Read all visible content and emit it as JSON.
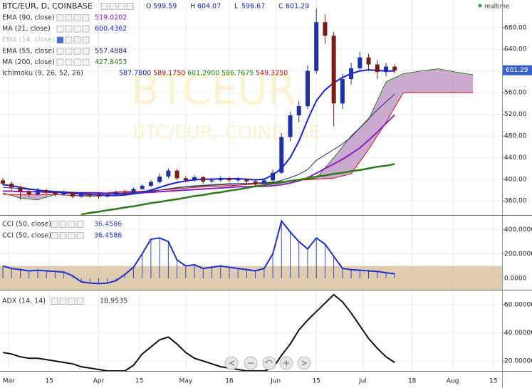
{
  "chart_data": [
    {
      "type": "candlestick",
      "title": "BTC/EUR, D, COINBASE",
      "realtime_label": "realtime",
      "watermark": {
        "symbol": "BTCEUR",
        "subtitle": "BTC/EUR, COINBASE"
      },
      "ohlc_header": [
        {
          "label": "O",
          "value": 599.59
        },
        {
          "label": "H",
          "value": 604.07
        },
        {
          "label": "L",
          "value": 596.67
        },
        {
          "label": "C",
          "value": 601.29
        }
      ],
      "xlim": [
        -3,
        170
      ],
      "ylim": [
        334,
        731
      ],
      "yticks": [
        {
          "value": 680,
          "label": "680.00"
        },
        {
          "value": 640,
          "label": "640.00"
        },
        {
          "value": 600,
          "label": "600.00"
        },
        {
          "value": 560,
          "label": "560.00"
        },
        {
          "value": 520,
          "label": "520.00"
        },
        {
          "value": 480,
          "label": "480.00"
        },
        {
          "value": 440,
          "label": "440.00"
        },
        {
          "value": 400,
          "label": "400.00"
        },
        {
          "value": 360,
          "label": "360.00"
        }
      ],
      "up_color": "#1f2fa8",
      "down_color": "#7a1c14",
      "x": [
        -2,
        1,
        4,
        7,
        10,
        13,
        16,
        19,
        22,
        25,
        28,
        31,
        34,
        37,
        40,
        43,
        46,
        49,
        52,
        55,
        58,
        61,
        64,
        67,
        70,
        73,
        76,
        79,
        82,
        85,
        88,
        91,
        94,
        97,
        100,
        103,
        106,
        109,
        112,
        115,
        118,
        121,
        124,
        127,
        130,
        133
      ],
      "open": [
        398,
        392,
        385,
        378,
        372,
        380,
        376,
        372,
        375,
        368,
        372,
        370,
        368,
        372,
        376,
        375,
        382,
        388,
        395,
        405,
        416,
        402,
        398,
        404,
        396,
        398,
        402,
        398,
        400,
        396,
        392,
        398,
        412,
        478,
        518,
        535,
        600,
        690,
        665,
        540,
        585,
        605,
        625,
        612,
        598,
        608
      ],
      "high": [
        402,
        396,
        388,
        382,
        384,
        383,
        378,
        379,
        377,
        375,
        374,
        372,
        375,
        379,
        380,
        385,
        391,
        398,
        410,
        420,
        419,
        406,
        408,
        406,
        402,
        406,
        405,
        404,
        402,
        398,
        402,
        418,
        485,
        525,
        545,
        610,
        715,
        705,
        672,
        595,
        615,
        635,
        632,
        620,
        615,
        612
      ],
      "low": [
        388,
        380,
        362,
        368,
        370,
        372,
        368,
        370,
        365,
        366,
        366,
        364,
        366,
        370,
        372,
        373,
        380,
        385,
        392,
        402,
        398,
        394,
        395,
        392,
        393,
        396,
        394,
        395,
        390,
        386,
        388,
        396,
        410,
        470,
        505,
        530,
        595,
        650,
        498,
        530,
        575,
        600,
        600,
        585,
        590,
        596
      ],
      "close": [
        392,
        385,
        378,
        372,
        380,
        376,
        372,
        375,
        368,
        372,
        370,
        368,
        372,
        376,
        375,
        382,
        388,
        395,
        405,
        416,
        402,
        398,
        404,
        396,
        398,
        402,
        398,
        400,
        396,
        392,
        398,
        412,
        478,
        518,
        535,
        600,
        690,
        665,
        540,
        585,
        605,
        625,
        612,
        598,
        608,
        601
      ],
      "series": [
        {
          "name": "EMA (90, close)",
          "legend_value": "519.0202",
          "color": "#8e1cc4",
          "width": 2,
          "values": [
            378,
            378,
            377,
            377,
            377,
            376,
            376,
            376,
            375,
            375,
            375,
            375,
            374,
            374,
            374,
            375,
            375,
            376,
            377,
            378,
            379,
            380,
            381,
            382,
            383,
            384,
            385,
            386,
            386,
            387,
            387,
            388,
            390,
            393,
            397,
            403,
            411,
            420,
            428,
            437,
            447,
            458,
            472,
            487,
            503,
            519
          ]
        },
        {
          "name": "MA (21, close)",
          "legend_value": "600.4362",
          "color": "#1a22e0",
          "width": 2,
          "values": [
            390,
            388,
            385,
            382,
            380,
            378,
            376,
            375,
            374,
            373,
            372,
            371,
            370,
            370,
            371,
            373,
            376,
            380,
            385,
            390,
            394,
            397,
            399,
            400,
            400,
            401,
            401,
            401,
            400,
            399,
            400,
            408,
            420,
            440,
            470,
            510,
            545,
            565,
            578,
            588,
            595,
            600,
            602,
            601,
            600,
            600
          ]
        },
        {
          "name": "EMA (14, close)",
          "hidden": true,
          "color": "#bbbbbb"
        },
        {
          "name": "EMA (55, close)",
          "legend_value": "557.4884",
          "color": "#2b2f7a",
          "width": 1,
          "values": [
            385,
            384,
            383,
            381,
            380,
            379,
            378,
            377,
            376,
            375,
            375,
            374,
            374,
            374,
            374,
            375,
            376,
            378,
            380,
            382,
            384,
            386,
            387,
            388,
            389,
            390,
            391,
            392,
            392,
            393,
            393,
            394,
            398,
            403,
            409,
            418,
            435,
            445,
            455,
            465,
            478,
            495,
            512,
            528,
            543,
            557
          ]
        },
        {
          "name": "MA (200, close)",
          "legend_value": "427.8453",
          "color": "#2e7a1a",
          "width": 2.5,
          "values": [
            null,
            null,
            null,
            null,
            null,
            null,
            null,
            null,
            null,
            335,
            338,
            340,
            343,
            345,
            348,
            350,
            353,
            356,
            358,
            361,
            363,
            366,
            369,
            371,
            374,
            376,
            379,
            381,
            384,
            387,
            389,
            392,
            394,
            397,
            399,
            402,
            405,
            407,
            410,
            412,
            415,
            417,
            420,
            423,
            425,
            428
          ]
        }
      ],
      "ichimoku": {
        "name": "Ichimoku (9, 26, 52, 26)",
        "legend_values": [
          "587.7800",
          "589.1750",
          "601.2900",
          "586.7675",
          "549.3250"
        ],
        "legend_colors": [
          "#1a22c8",
          "#b01010",
          "#1a8a1a",
          "#1a8a1a",
          "#c01010"
        ],
        "fill": "#b98ec0",
        "span_a_color": "#3a7a2a",
        "span_b_color": "#d01818",
        "x": [
          -2,
          4,
          10,
          16,
          22,
          28,
          34,
          40,
          46,
          52,
          58,
          64,
          70,
          76,
          82,
          88,
          94,
          100,
          106,
          112,
          118,
          124,
          130,
          136,
          142,
          148,
          154,
          160
        ],
        "span_a": [
          375,
          365,
          362,
          372,
          370,
          368,
          370,
          372,
          374,
          380,
          385,
          388,
          390,
          392,
          392,
          394,
          396,
          398,
          402,
          440,
          480,
          510,
          580,
          595,
          600,
          604,
          598,
          593
        ],
        "span_b": [
          372,
          372,
          372,
          372,
          370,
          370,
          375,
          378,
          378,
          380,
          382,
          385,
          387,
          388,
          390,
          392,
          395,
          398,
          400,
          402,
          410,
          455,
          505,
          560,
          560,
          560,
          560,
          560
        ]
      }
    },
    {
      "type": "cci",
      "xlim": [
        -3,
        170
      ],
      "ylim": [
        -95,
        513
      ],
      "band": [
        -100,
        100
      ],
      "band_color": "#d8c19c",
      "yticks": [
        {
          "value": 400,
          "label": "400.0000"
        },
        {
          "value": 200,
          "label": "200.0000"
        },
        {
          "value": 0,
          "label": "0.0000"
        }
      ],
      "x": [
        -2,
        1,
        4,
        7,
        10,
        13,
        16,
        19,
        22,
        25,
        28,
        31,
        34,
        37,
        40,
        43,
        46,
        49,
        52,
        55,
        58,
        61,
        64,
        67,
        70,
        73,
        76,
        79,
        82,
        85,
        88,
        91,
        94,
        97,
        100,
        103,
        106,
        109,
        112,
        115,
        118,
        121,
        124,
        127,
        130,
        133
      ],
      "series": [
        {
          "name": "CCI (50, close)",
          "legend_value": "36.4586",
          "style": "histogram",
          "color": "#3a46c8",
          "values": [
            100,
            80,
            70,
            60,
            65,
            60,
            55,
            50,
            20,
            -30,
            -40,
            -45,
            -40,
            -20,
            30,
            90,
            200,
            320,
            330,
            300,
            150,
            100,
            110,
            80,
            90,
            100,
            90,
            80,
            70,
            60,
            80,
            200,
            470,
            380,
            300,
            240,
            330,
            280,
            180,
            80,
            70,
            65,
            60,
            55,
            45,
            36
          ]
        },
        {
          "name": "CCI (50, close)",
          "legend_value": "36.4586",
          "style": "line",
          "color": "#1f2fd0",
          "values": [
            100,
            80,
            70,
            60,
            65,
            60,
            55,
            50,
            20,
            -30,
            -40,
            -45,
            -40,
            -20,
            30,
            90,
            200,
            320,
            330,
            300,
            150,
            100,
            110,
            80,
            90,
            100,
            90,
            80,
            70,
            60,
            80,
            200,
            470,
            380,
            300,
            240,
            330,
            280,
            180,
            80,
            70,
            65,
            60,
            55,
            45,
            36
          ]
        }
      ]
    },
    {
      "type": "line",
      "xlim": [
        -3,
        170
      ],
      "ylim": [
        13,
        70
      ],
      "yticks": [
        {
          "value": 60,
          "label": "60.00000"
        },
        {
          "value": 40,
          "label": "40.00000"
        },
        {
          "value": 20,
          "label": "20.00000"
        }
      ],
      "xticks": [
        {
          "value": 0,
          "label": "Mar"
        },
        {
          "value": 14,
          "label": "15"
        },
        {
          "value": 31,
          "label": "Apr"
        },
        {
          "value": 45,
          "label": "15"
        },
        {
          "value": 61,
          "label": "May"
        },
        {
          "value": 76,
          "label": "16"
        },
        {
          "value": 92,
          "label": "Jun"
        },
        {
          "value": 106,
          "label": "15"
        },
        {
          "value": 122,
          "label": "Jul"
        },
        {
          "value": 139,
          "label": "18"
        },
        {
          "value": 153,
          "label": "Aug"
        },
        {
          "value": 167,
          "label": "15"
        }
      ],
      "x": [
        -2,
        1,
        4,
        7,
        10,
        13,
        16,
        19,
        22,
        25,
        28,
        31,
        34,
        37,
        40,
        43,
        46,
        49,
        52,
        55,
        58,
        61,
        64,
        67,
        70,
        73,
        76,
        79,
        82,
        85,
        88,
        91,
        94,
        97,
        100,
        103,
        106,
        109,
        112,
        115,
        118,
        121,
        124,
        127,
        130,
        133
      ],
      "series": [
        {
          "name": "ADX (14, 14)",
          "legend_value": "18.9535",
          "color": "#111111",
          "values": [
            26,
            25,
            23,
            22,
            22,
            21,
            20,
            19,
            18,
            16,
            15,
            14,
            13,
            13,
            13,
            17,
            25,
            30,
            35,
            37,
            32,
            26,
            22,
            20,
            18,
            16,
            15,
            14,
            13,
            13,
            13,
            15,
            24,
            32,
            42,
            49,
            55,
            61,
            67,
            62,
            54,
            45,
            36,
            29,
            23,
            19
          ]
        }
      ]
    }
  ]
}
